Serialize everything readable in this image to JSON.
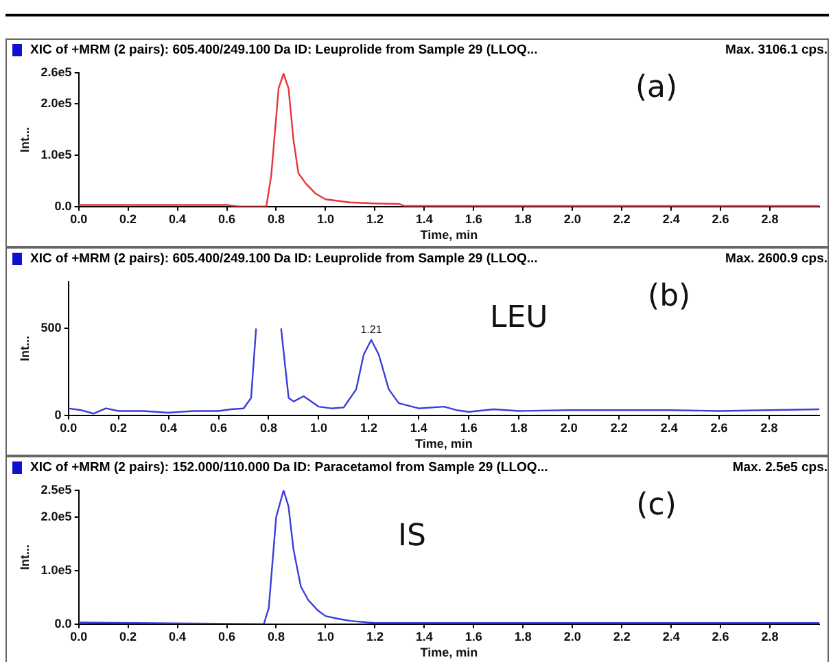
{
  "chart_data": [
    {
      "type": "line",
      "title": "XIC of +MRM (2 pairs): 605.400/249.100 Da ID: Leuprolide from Sample 29 (LLOQ...",
      "xlabel": "Time, min",
      "ylabel": "Int...",
      "annotations": [
        "Max. 3106.1 cps.",
        "(a)"
      ],
      "series": [
        {
          "color": "#e8343a",
          "x": [
            0,
            0.6,
            0.65,
            0.76,
            0.78,
            0.81,
            0.83,
            0.85,
            0.87,
            0.89,
            0.92,
            0.96,
            1.0,
            1.05,
            1.1,
            1.2,
            1.3,
            1.32,
            1.5,
            3.0
          ],
          "values": [
            3000,
            3000,
            0,
            0,
            60000,
            230000,
            258000,
            230000,
            130000,
            65000,
            45000,
            25000,
            14000,
            11000,
            8000,
            6000,
            5000,
            1000,
            1000,
            1000
          ]
        }
      ],
      "xlim": [
        0,
        3.0
      ],
      "xticks": [
        {
          "value": 0,
          "label": "0.0"
        },
        {
          "value": 0.2,
          "label": "0.2"
        },
        {
          "value": 0.4,
          "label": "0.4"
        },
        {
          "value": 0.6,
          "label": "0.6"
        },
        {
          "value": 0.8,
          "label": "0.8"
        },
        {
          "value": 1.0,
          "label": "1.0"
        },
        {
          "value": 1.2,
          "label": "1.2"
        },
        {
          "value": 1.4,
          "label": "1.4"
        },
        {
          "value": 1.6,
          "label": "1.6"
        },
        {
          "value": 1.8,
          "label": "1.8"
        },
        {
          "value": 2.0,
          "label": "2.0"
        },
        {
          "value": 2.2,
          "label": "2.2"
        },
        {
          "value": 2.4,
          "label": "2.4"
        },
        {
          "value": 2.6,
          "label": "2.6"
        },
        {
          "value": 2.8,
          "label": "2.8"
        }
      ],
      "ylim": [
        0,
        260000
      ],
      "yticks": [
        {
          "value": 0,
          "label": "0.0"
        },
        {
          "value": 100000,
          "label": "1.0e5"
        },
        {
          "value": 200000,
          "label": "2.0e5"
        },
        {
          "value": 260000,
          "label": "2.6e5"
        }
      ],
      "grid": false,
      "legend": false,
      "marker": "none",
      "line_style": "solid"
    },
    {
      "type": "line",
      "title": "XIC of +MRM (2 pairs): 605.400/249.100 Da ID: Leuprolide from Sample 29 (LLOQ...",
      "xlabel": "Time, min",
      "ylabel": "Int...",
      "annotations": [
        "Max. 2600.9 cps.",
        "LEU",
        "(b)",
        {
          "text": "1.21",
          "x": 1.21,
          "y": 434
        }
      ],
      "series": [
        {
          "color": "#3c3cdc",
          "x": [
            0,
            0.05,
            0.1,
            0.15,
            0.2,
            0.3,
            0.4,
            0.5,
            0.6,
            0.65,
            0.7,
            0.73,
            0.75,
            0.76,
            0.84,
            0.85,
            0.88,
            0.9,
            0.94,
            0.97,
            1.0,
            1.05,
            1.1,
            1.15,
            1.18,
            1.21,
            1.24,
            1.28,
            1.32,
            1.4,
            1.5,
            1.55,
            1.6,
            1.7,
            1.8,
            2.0,
            2.2,
            2.4,
            2.6,
            2.8,
            3.0
          ],
          "values": [
            40,
            30,
            10,
            40,
            25,
            25,
            15,
            25,
            25,
            35,
            40,
            100,
            500,
            null,
            null,
            500,
            100,
            80,
            110,
            80,
            50,
            40,
            45,
            150,
            350,
            434,
            350,
            150,
            70,
            40,
            50,
            30,
            20,
            35,
            25,
            30,
            30,
            30,
            25,
            30,
            35
          ]
        }
      ],
      "xlim": [
        0,
        3.0
      ],
      "xticks": [
        {
          "value": 0,
          "label": "0.0"
        },
        {
          "value": 0.2,
          "label": "0.2"
        },
        {
          "value": 0.4,
          "label": "0.4"
        },
        {
          "value": 0.6,
          "label": "0.6"
        },
        {
          "value": 0.8,
          "label": "0.8"
        },
        {
          "value": 1.0,
          "label": "1.0"
        },
        {
          "value": 1.2,
          "label": "1.2"
        },
        {
          "value": 1.4,
          "label": "1.4"
        },
        {
          "value": 1.6,
          "label": "1.6"
        },
        {
          "value": 1.8,
          "label": "1.8"
        },
        {
          "value": 2.0,
          "label": "2.0"
        },
        {
          "value": 2.2,
          "label": "2.2"
        },
        {
          "value": 2.4,
          "label": "2.4"
        },
        {
          "value": 2.6,
          "label": "2.6"
        },
        {
          "value": 2.8,
          "label": "2.8"
        }
      ],
      "ylim": [
        0,
        770
      ],
      "yticks": [
        0,
        500
      ],
      "grid": false,
      "legend": false,
      "marker": "none",
      "line_style": "solid"
    },
    {
      "type": "line",
      "title": "XIC of +MRM (2 pairs): 152.000/110.000 Da ID: Paracetamol from Sample 29 (LLOQ...",
      "xlabel": "Time, min",
      "ylabel": "Int...",
      "annotations": [
        "Max. 2.5e5 cps.",
        "IS",
        "(c)"
      ],
      "series": [
        {
          "color": "#3c3cdc",
          "x": [
            0,
            0.75,
            0.77,
            0.8,
            0.83,
            0.85,
            0.87,
            0.9,
            0.93,
            0.97,
            1.0,
            1.05,
            1.1,
            1.2,
            3.0
          ],
          "values": [
            3000,
            0,
            30000,
            200000,
            250000,
            220000,
            140000,
            70000,
            45000,
            25000,
            15000,
            10000,
            6000,
            2000,
            2000
          ]
        }
      ],
      "xlim": [
        0,
        3.0
      ],
      "xticks": [
        {
          "value": 0,
          "label": "0.0"
        },
        {
          "value": 0.2,
          "label": "0.2"
        },
        {
          "value": 0.4,
          "label": "0.4"
        },
        {
          "value": 0.6,
          "label": "0.6"
        },
        {
          "value": 0.8,
          "label": "0.8"
        },
        {
          "value": 1.0,
          "label": "1.0"
        },
        {
          "value": 1.2,
          "label": "1.2"
        },
        {
          "value": 1.4,
          "label": "1.4"
        },
        {
          "value": 1.6,
          "label": "1.6"
        },
        {
          "value": 1.8,
          "label": "1.8"
        },
        {
          "value": 2.0,
          "label": "2.0"
        },
        {
          "value": 2.2,
          "label": "2.2"
        },
        {
          "value": 2.4,
          "label": "2.4"
        },
        {
          "value": 2.6,
          "label": "2.6"
        },
        {
          "value": 2.8,
          "label": "2.8"
        }
      ],
      "ylim": [
        0,
        250000
      ],
      "yticks": [
        {
          "value": 0,
          "label": "0.0"
        },
        {
          "value": 100000,
          "label": "1.0e5"
        },
        {
          "value": 200000,
          "label": "2.0e5"
        },
        {
          "value": 250000,
          "label": "2.5e5"
        }
      ],
      "grid": false,
      "legend": false,
      "marker": "none",
      "line_style": "solid"
    }
  ]
}
